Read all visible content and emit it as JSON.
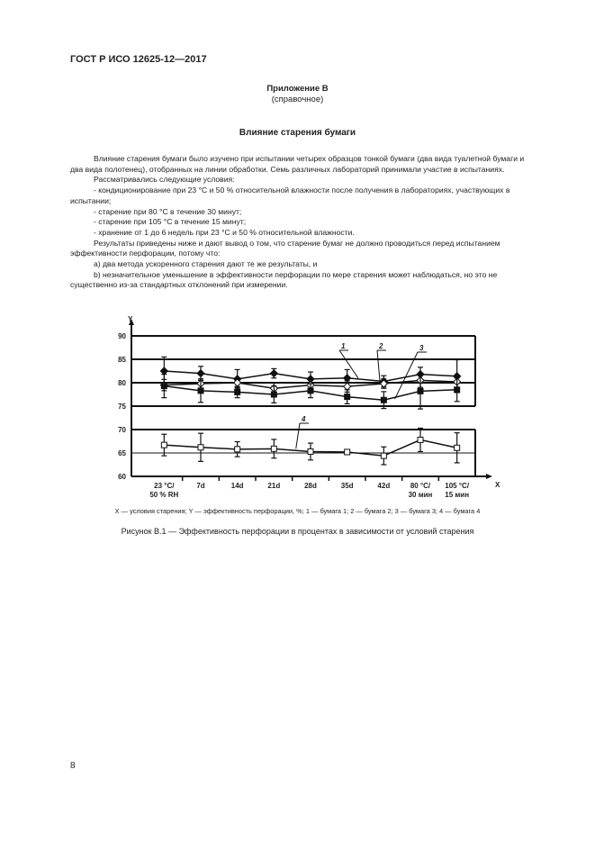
{
  "header": "ГОСТ Р ИСО 12625-12—2017",
  "annex_title": "Приложение В",
  "annex_subtitle": "(справочное)",
  "section_title": "Влияние старения бумаги",
  "paragraphs": [
    {
      "text": "Влияние старения бумаги было изучено при испытании четырех образцов тонкой бумаги (два вида туалетной бумаги и два вида полотенец), отобранных на линии обработки. Семь различных лабораторий принимали участие в испытаниях.",
      "indent": true
    },
    {
      "text": "Рассматривались следующие условия:",
      "indent": true
    },
    {
      "text": "- кондиционирование при 23 °С и 50 % относительной влажности после получения в лабораториях, участвующих в испытании;",
      "indent": true
    },
    {
      "text": "- старение при 80 °С в течение 30 минут;",
      "indent": true
    },
    {
      "text": "- старение при 105 °С в течение 15 минут;",
      "indent": true
    },
    {
      "text": "- хранение от 1 до 6 недель при 23 °С и 50 % относительной влажности.",
      "indent": true
    },
    {
      "text": "Результаты приведены ниже и дают вывод о том, что старение бумаг не должно проводиться перед испытанием эффективности перфорации, потому что:",
      "indent": true
    },
    {
      "text": "a) два метода ускоренного старения дают те же результаты, и",
      "indent": true
    },
    {
      "text": "b) незначительное уменьшение в эффективности перфорации по мере старения может наблюдаться, но это не существенно из-за стандартных отклонений при измерении.",
      "indent": true
    }
  ],
  "chart_data": {
    "type": "line",
    "xlabel": "X",
    "ylabel": "Y",
    "categories": [
      "23 °C/ 50 % RH",
      "7d",
      "14d",
      "21d",
      "28d",
      "35d",
      "42d",
      "80 °C/ 30 мин",
      "105 °C/ 15 мин"
    ],
    "category_lines": [
      [
        "23 °C/",
        "50 % RH"
      ],
      [
        "7d"
      ],
      [
        "14d"
      ],
      [
        "21d"
      ],
      [
        "28d"
      ],
      [
        "35d"
      ],
      [
        "42d"
      ],
      [
        "80 °C/",
        "30 мин"
      ],
      [
        "105 °C/",
        "15 мин"
      ]
    ],
    "yticks": [
      60,
      65,
      70,
      75,
      80,
      85,
      90
    ],
    "ylim": [
      60,
      90
    ],
    "grid": true,
    "series": [
      {
        "name": "1",
        "marker": "filled-diamond",
        "values": [
          82.5,
          82,
          80.8,
          82,
          80.8,
          81,
          80.3,
          81.8,
          81.4
        ],
        "errors": [
          3,
          1.5,
          2,
          1,
          1.5,
          1.8,
          1.2,
          1.5,
          3.5
        ]
      },
      {
        "name": "2",
        "marker": "open-diamond",
        "values": [
          79.5,
          79.8,
          80,
          78.8,
          79.5,
          79.2,
          79.8,
          80.5,
          80.2
        ],
        "errors": [
          1.2,
          1,
          1,
          1.2,
          1,
          1.2,
          1,
          1.5,
          1.2
        ]
      },
      {
        "name": "3",
        "marker": "filled-square",
        "values": [
          79.3,
          78.3,
          78,
          77.5,
          78.3,
          77,
          76.3,
          78.2,
          78.5
        ],
        "errors": [
          2.5,
          2.5,
          1.2,
          1.8,
          1.5,
          1.5,
          1.8,
          3.8,
          2.5
        ]
      },
      {
        "name": "4",
        "marker": "open-square",
        "values": [
          66.7,
          66.2,
          65.8,
          65.9,
          65.3,
          65.2,
          64.4,
          67.8,
          66.1
        ],
        "errors": [
          2.3,
          3,
          1.6,
          2,
          1.8,
          0.5,
          1.9,
          2.5,
          3.2
        ]
      }
    ],
    "legend_caption": "X — условия старения; Y — эффективность перфорации, %; 1 — бумага 1; 2 — бумага 2; 3 — бумага 3; 4 — бумага 4"
  },
  "figure_caption": "Рисунок В.1 — Эффективность перфорации в процентах в зависимости от условий старения",
  "page_number": "8"
}
